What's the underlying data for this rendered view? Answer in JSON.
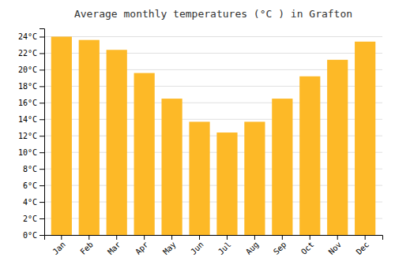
{
  "chart_data": {
    "type": "bar",
    "title": "Average monthly temperatures (°C ) in Grafton",
    "categories": [
      "Jan",
      "Feb",
      "Mar",
      "Apr",
      "May",
      "Jun",
      "Jul",
      "Aug",
      "Sep",
      "Oct",
      "Nov",
      "Dec"
    ],
    "values": [
      24.0,
      23.6,
      22.4,
      19.6,
      16.5,
      13.7,
      12.4,
      13.7,
      16.5,
      19.2,
      21.2,
      23.4
    ],
    "color": "#FDB927",
    "ylim": [
      0,
      25
    ],
    "yticks": [
      {
        "value": 0,
        "label": "0°C"
      },
      {
        "value": 2,
        "label": "2°C"
      },
      {
        "value": 4,
        "label": "4°C"
      },
      {
        "value": 6,
        "label": "6°C"
      },
      {
        "value": 8,
        "label": "8°C"
      },
      {
        "value": 10,
        "label": "10°C"
      },
      {
        "value": 12,
        "label": "12°C"
      },
      {
        "value": 14,
        "label": "14°C"
      },
      {
        "value": 16,
        "label": "16°C"
      },
      {
        "value": 18,
        "label": "18°C"
      },
      {
        "value": 20,
        "label": "20°C"
      },
      {
        "value": 22,
        "label": "22°C"
      },
      {
        "value": 24,
        "label": "24°C"
      }
    ],
    "grid": true
  }
}
